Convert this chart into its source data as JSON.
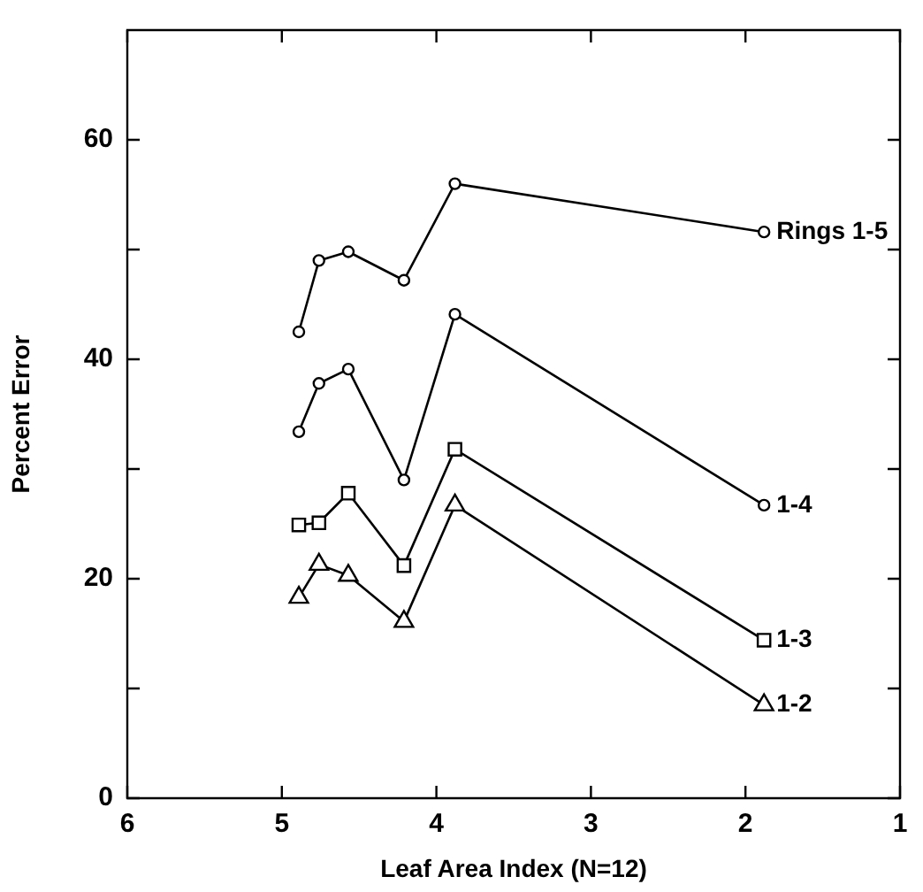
{
  "chart_data": {
    "type": "line",
    "xlabel": "Leaf Area Index (N=12)",
    "ylabel": "Percent Error",
    "x": [
      4.89,
      4.76,
      4.57,
      4.21,
      3.88,
      1.88
    ],
    "series": [
      {
        "name": "Rings 1-5",
        "color": "#000000",
        "marker": "circle",
        "values": [
          42.5,
          49.0,
          49.8,
          47.2,
          56.0,
          51.6
        ]
      },
      {
        "name": "1-4",
        "color": "#000000",
        "marker": "circle",
        "values": [
          33.4,
          37.8,
          39.1,
          29.0,
          44.1,
          26.7
        ]
      },
      {
        "name": "1-3",
        "color": "#000000",
        "marker": "square",
        "values": [
          24.9,
          25.1,
          27.8,
          21.2,
          31.8,
          14.4
        ]
      },
      {
        "name": "1-2",
        "color": "#000000",
        "marker": "triangle",
        "values": [
          18.3,
          21.3,
          20.3,
          16.1,
          26.7,
          8.5
        ]
      }
    ],
    "xlim": [
      6,
      1
    ],
    "xticks": [
      6,
      5,
      4,
      3,
      2,
      1
    ],
    "ylim": [
      0,
      70
    ],
    "yticks": [
      0,
      {
        "value": 10,
        "label": null
      },
      20,
      {
        "value": 30,
        "label": null
      },
      40,
      {
        "value": 50,
        "label": null
      },
      60
    ],
    "grid": false,
    "legend": false
  }
}
